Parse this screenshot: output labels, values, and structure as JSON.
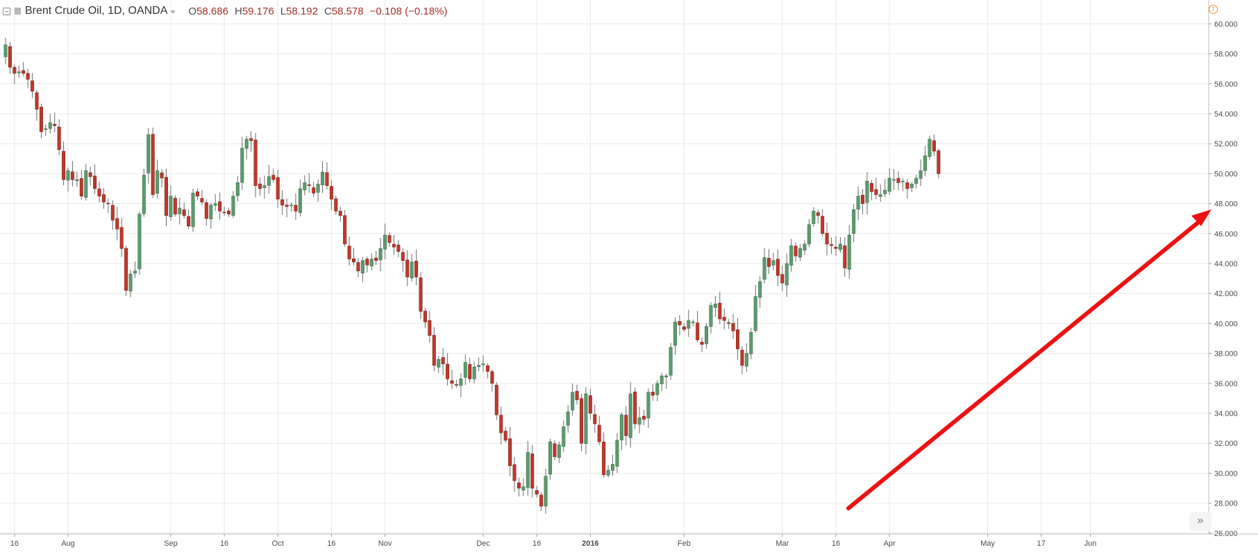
{
  "legend": {
    "title": "Brent Crude Oil, 1D, OANDA",
    "o_key": "O",
    "o": "58.686",
    "h_key": "H",
    "h": "59.176",
    "l_key": "L",
    "l": "58.192",
    "c_key": "C",
    "c": "58.578",
    "change": "−0.108 (−0.18%)",
    "icons": {
      "collapse": "collapse-icon",
      "alert": "alert-icon",
      "scroll": "double-chevron-right-icon"
    }
  },
  "colors": {
    "up": "#5b9c6e",
    "down": "#c0392b",
    "wick": "#6a6a6a",
    "grid": "#e9e9e9",
    "arrow": "#ee1111"
  },
  "chart_data": {
    "type": "candlestick",
    "title": "Brent Crude Oil, 1D, OANDA",
    "ylim": [
      25,
      61
    ],
    "y_ticks": [
      "60.000",
      "58.000",
      "56.000",
      "54.000",
      "52.000",
      "50.000",
      "48.000",
      "46.000",
      "44.000",
      "42.000",
      "40.000",
      "38.000",
      "36.000",
      "34.000",
      "32.000",
      "30.000",
      "28.000",
      "26.000"
    ],
    "x_labels": [
      {
        "bar": 2,
        "text": "16"
      },
      {
        "bar": 14,
        "text": "Aug"
      },
      {
        "bar": 37,
        "text": "Sep"
      },
      {
        "bar": 49,
        "text": "16"
      },
      {
        "bar": 61,
        "text": "Oct"
      },
      {
        "bar": 73,
        "text": "16"
      },
      {
        "bar": 85,
        "text": "Nov"
      },
      {
        "bar": 107,
        "text": "Dec"
      },
      {
        "bar": 119,
        "text": "16"
      },
      {
        "bar": 131,
        "text": "2016",
        "bold": true
      },
      {
        "bar": 152,
        "text": "Feb"
      },
      {
        "bar": 174,
        "text": "Mar"
      },
      {
        "bar": 186,
        "text": "16"
      },
      {
        "bar": 198,
        "text": "Apr"
      },
      {
        "bar": 220,
        "text": "May"
      },
      {
        "bar": 232,
        "text": "17"
      },
      {
        "bar": 243,
        "text": "Jun"
      }
    ],
    "closes": [
      58.6,
      57.1,
      56.7,
      56.8,
      56.7,
      56.3,
      55.5,
      54.3,
      52.8,
      53.0,
      53.4,
      53.2,
      51.6,
      49.6,
      50.2,
      49.6,
      49.6,
      48.5,
      50.2,
      49.8,
      49.0,
      48.5,
      48.1,
      48.0,
      46.9,
      46.3,
      45.0,
      42.2,
      43.3,
      43.5,
      47.3,
      49.9,
      52.6,
      48.6,
      50.2,
      49.7,
      47.2,
      48.5,
      47.3,
      47.7,
      47.2,
      46.5,
      48.7,
      48.5,
      48.1,
      47.0,
      47.9,
      48.0,
      47.5,
      47.4,
      47.3,
      48.5,
      49.4,
      51.7,
      52.3,
      52.2,
      49.2,
      49.0,
      49.2,
      49.8,
      49.6,
      48.3,
      47.9,
      47.8,
      47.9,
      47.5,
      49.0,
      49.4,
      49.2,
      48.7,
      49.3,
      50.1,
      49.2,
      48.3,
      47.5,
      47.2,
      45.3,
      44.3,
      44.1,
      43.5,
      44.2,
      43.9,
      44.3,
      44.2,
      45.0,
      45.9,
      45.4,
      45.1,
      44.8,
      44.2,
      43.1,
      44.1,
      43.1,
      40.8,
      40.1,
      39.2,
      37.2,
      37.6,
      37.3,
      36.3,
      36.0,
      35.9,
      36.3,
      37.4,
      36.3,
      37.1,
      37.2,
      37.3,
      36.8,
      36.0,
      33.9,
      32.7,
      32.2,
      30.5,
      29.5,
      29.0,
      29.1,
      31.4,
      29.0,
      28.6,
      27.8,
      29.8,
      32.1,
      31.1,
      31.9,
      33.1,
      34.1,
      35.4,
      34.9,
      32.0,
      35.3,
      34.0,
      33.3,
      32.1,
      29.9,
      30.2,
      30.6,
      32.2,
      33.9,
      32.5,
      35.3,
      33.3,
      33.7,
      33.6,
      35.4,
      35.2,
      36.0,
      36.5,
      36.5,
      38.4,
      40.1,
      39.9,
      39.6,
      40.2,
      40.1,
      38.9,
      38.6,
      39.8,
      41.2,
      41.3,
      40.3,
      40.2,
      40.0,
      39.5,
      38.3,
      37.2,
      38.0,
      39.4,
      41.8,
      42.8,
      44.4,
      43.8,
      44.2,
      43.2,
      42.7,
      44.0,
      45.2,
      44.5,
      45.0,
      45.3,
      46.6,
      47.5,
      47.2,
      46.0,
      45.3,
      45.2,
      45.0,
      45.3,
      43.7,
      45.9,
      47.6,
      48.5,
      48.0,
      49.5,
      48.8,
      48.6,
      48.6,
      48.9,
      49.7,
      49.6,
      49.4,
      49.5,
      49.0,
      49.3,
      49.7,
      50.2,
      51.2,
      52.3,
      51.5,
      50.0
    ],
    "x_range": "2015-07-13 to 2016-06-07 (daily bars)"
  }
}
